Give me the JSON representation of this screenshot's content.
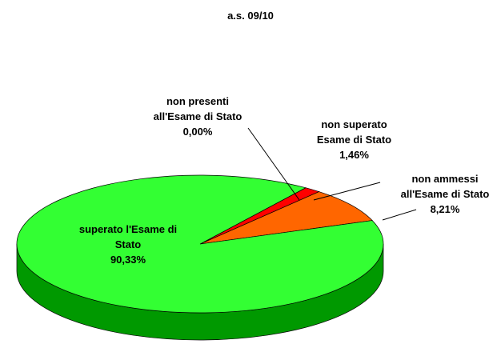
{
  "chart_data": {
    "type": "pie",
    "title": "a.s. 09/10",
    "categories": [
      "non ammessi all'Esame di Stato",
      "non superato Esame di Stato",
      "non presenti all'Esame di Stato",
      "superato l'Esame di Stato"
    ],
    "values": [
      8.21,
      1.46,
      0,
      90.33
    ],
    "value_labels": [
      "8,21%",
      "1,46%",
      "0,00%",
      "90,33%"
    ],
    "colors": [
      "#ff6600",
      "#ff0000",
      "#3366ff",
      "#33ff33"
    ],
    "side_colors": [
      "#993300",
      "#990000",
      "#003399",
      "#009900"
    ]
  }
}
